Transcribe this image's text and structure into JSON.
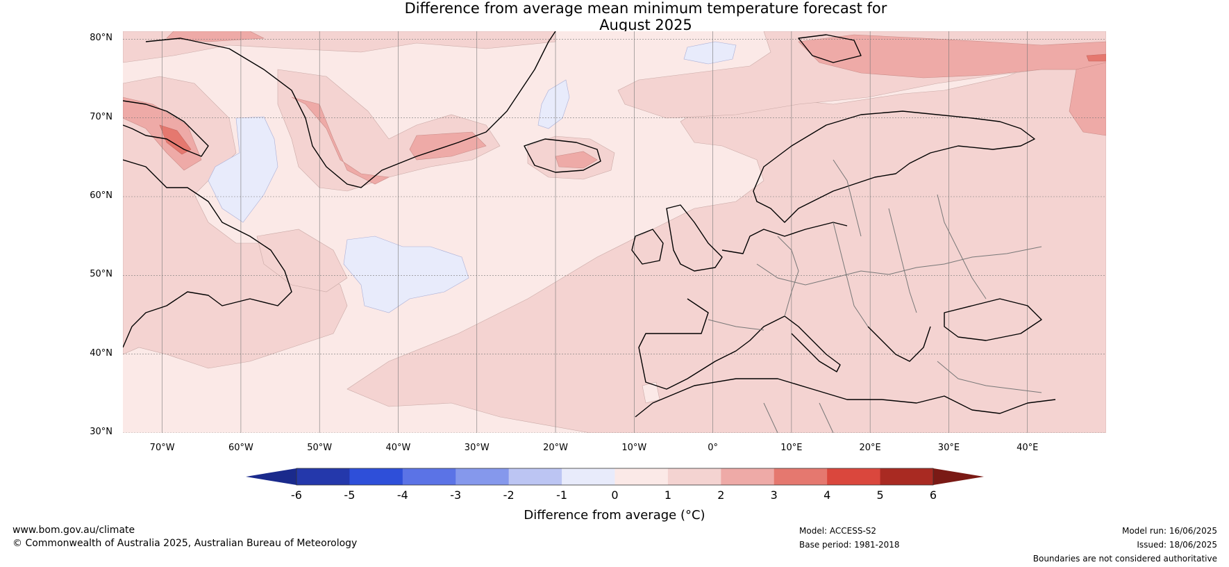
{
  "title": {
    "line1": "Difference from average mean minimum temperature forecast for",
    "line2": "August 2025"
  },
  "map": {
    "lat_labels": [
      "80°N",
      "70°N",
      "60°N",
      "50°N",
      "40°N",
      "30°N"
    ],
    "lat_values": [
      80,
      70,
      60,
      50,
      40,
      30
    ],
    "lon_labels": [
      "70°W",
      "60°W",
      "50°W",
      "40°W",
      "30°W",
      "20°W",
      "10°W",
      "0°",
      "10°E",
      "20°E",
      "30°E",
      "40°E"
    ],
    "lon_values": [
      -70,
      -60,
      -50,
      -40,
      -30,
      -20,
      -10,
      0,
      10,
      20,
      30,
      40
    ],
    "extent": {
      "lon_min": -75,
      "lon_max": 50,
      "lat_min": 30,
      "lat_max": 81
    },
    "background_color": "#fbe9e7",
    "ocean_anomaly_color": "#fbe9e7",
    "land_anomaly_color": "#f4d3d1"
  },
  "colorbar": {
    "ticks": [
      "-6",
      "-5",
      "-4",
      "-3",
      "-2",
      "-1",
      "0",
      "1",
      "2",
      "3",
      "4",
      "5",
      "6"
    ],
    "colors": [
      "#2438ab",
      "#2e4fd9",
      "#5b73e6",
      "#8598ec",
      "#bcc5f3",
      "#e8ebfb",
      "#fbe9e7",
      "#f4d3d1",
      "#eeaaa7",
      "#e5786f",
      "#da473d",
      "#a92a22"
    ],
    "under_color": "#1a2a8c",
    "over_color": "#7a1a15",
    "label": "Difference from average (°C)"
  },
  "footer": {
    "website": "www.bom.gov.au/climate",
    "copyright": "© Commonwealth of Australia 2025, Australian Bureau of Meteorology",
    "model": "Model: ACCESS-S2",
    "base_period": "Base period: 1981-2018",
    "model_run": "Model run: 16/06/2025",
    "issued": "Issued: 18/06/2025",
    "disclaimer": "Boundaries are not considered authoritative"
  }
}
